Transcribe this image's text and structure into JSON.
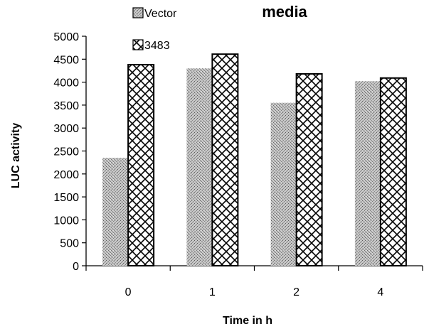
{
  "chart_data": {
    "type": "bar",
    "title": "media",
    "xlabel": "Time in h",
    "ylabel": "LUC activity",
    "categories": [
      "0",
      "1",
      "2",
      "4"
    ],
    "ylim": [
      0,
      5000
    ],
    "yticks": [
      0,
      500,
      1000,
      1500,
      2000,
      2500,
      3000,
      3500,
      4000,
      4500,
      5000
    ],
    "grid": false,
    "legend_position": "top-left",
    "series": [
      {
        "name": "Vector",
        "values": [
          2350,
          4300,
          3550,
          4020
        ],
        "pattern": "stipple",
        "color": "#b3b3b3"
      },
      {
        "name": "3483",
        "values": [
          4380,
          4610,
          4180,
          4090
        ],
        "pattern": "crosshatch",
        "color": "#000000"
      }
    ]
  }
}
